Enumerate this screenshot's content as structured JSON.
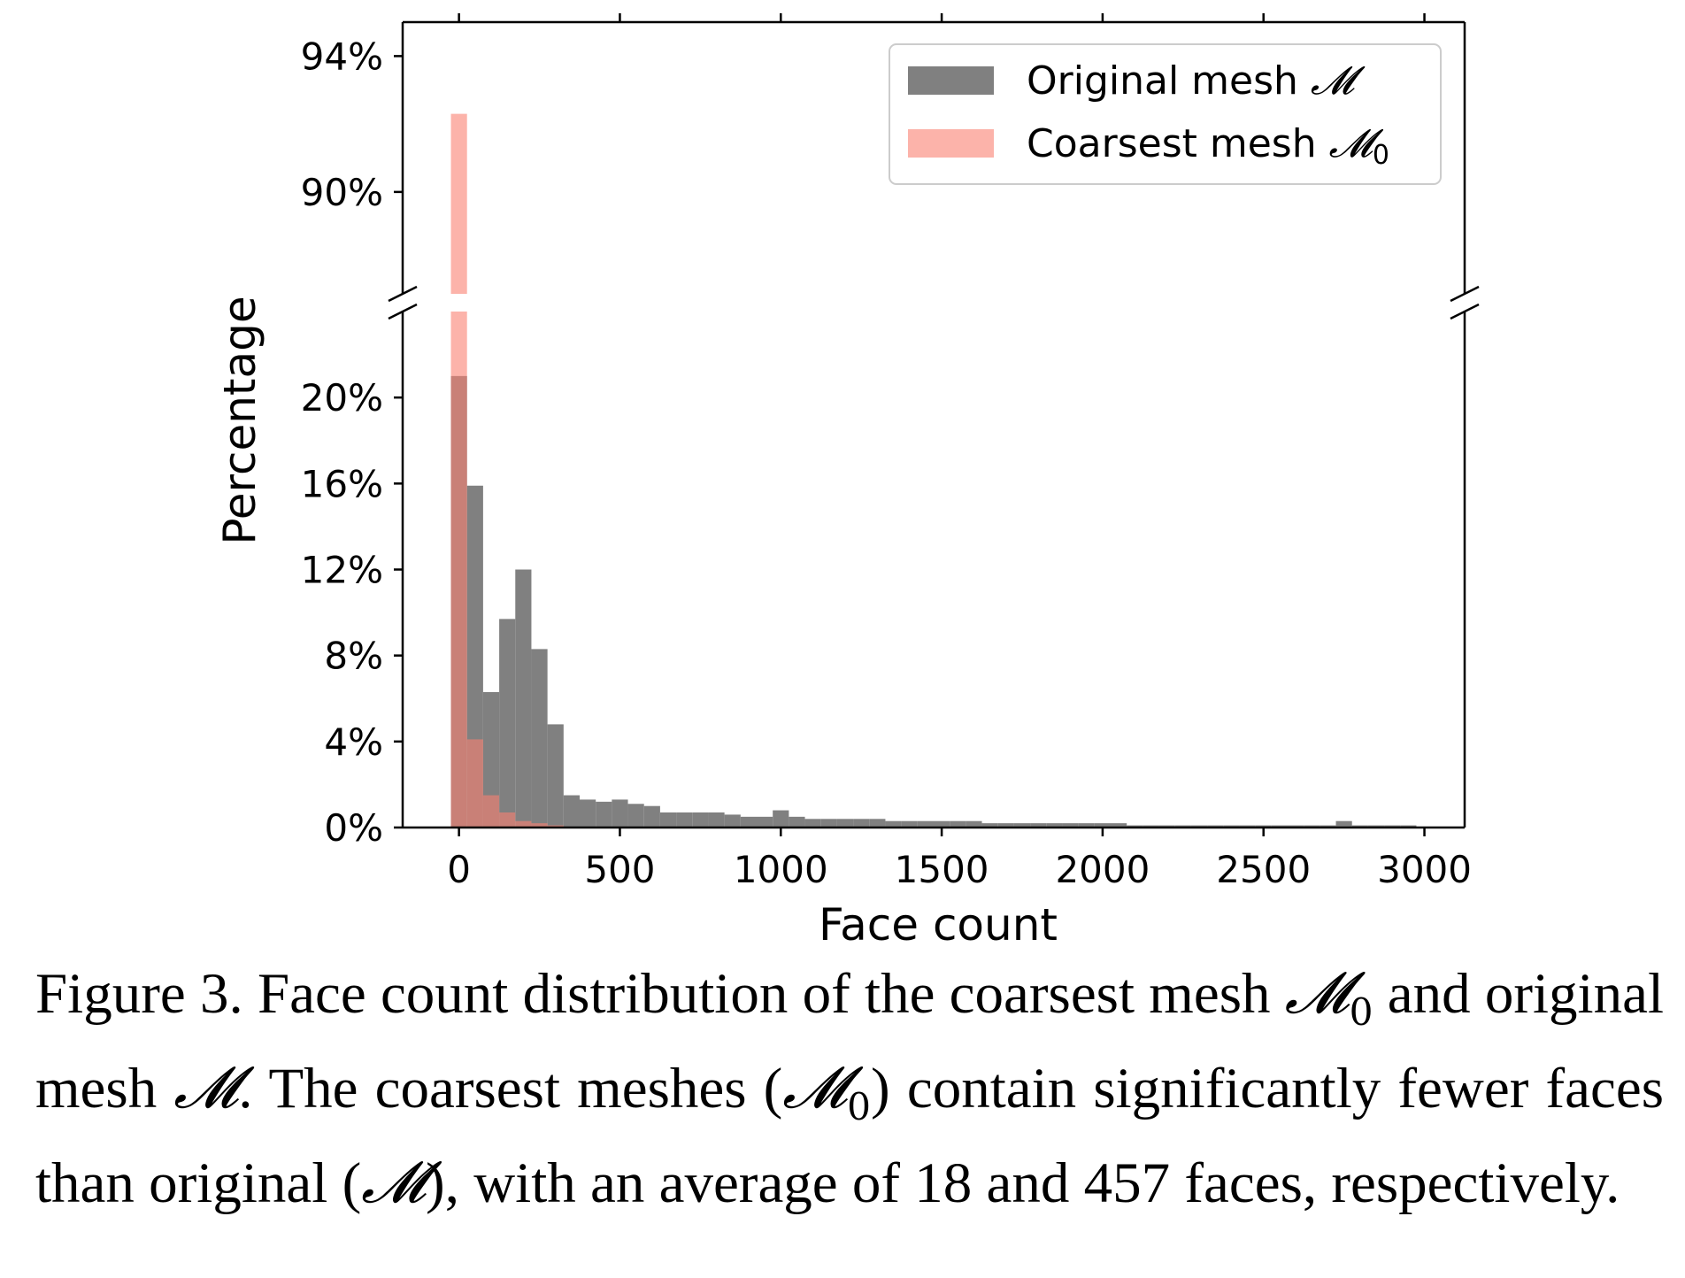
{
  "chart_data": {
    "type": "bar",
    "xlabel": "Face count",
    "ylabel": "Percentage",
    "x_bin_width": 50,
    "xlim": [
      -175,
      3125
    ],
    "xticks": [
      0,
      500,
      1000,
      1500,
      2000,
      2500,
      3000
    ],
    "xtick_labels": [
      "0",
      "500",
      "1000",
      "1500",
      "2000",
      "2500",
      "3000"
    ],
    "ylim_lower": [
      0,
      24
    ],
    "ylim_upper": [
      87,
      95
    ],
    "yticks_lower": [
      0,
      4,
      8,
      12,
      16,
      20
    ],
    "ytick_labels_lower": [
      "0%",
      "4%",
      "8%",
      "12%",
      "16%",
      "20%"
    ],
    "yticks_upper": [
      90,
      94
    ],
    "ytick_labels_upper": [
      "90%",
      "94%"
    ],
    "axis_break": true,
    "legend_position": "upper-right",
    "series": [
      {
        "name": "Original mesh",
        "symbol": "𝓜",
        "subscript": "",
        "color": "#808080",
        "x": [
          0,
          50,
          100,
          150,
          200,
          250,
          300,
          350,
          400,
          450,
          500,
          550,
          600,
          650,
          700,
          750,
          800,
          850,
          900,
          950,
          1000,
          1050,
          1100,
          1150,
          1200,
          1250,
          1300,
          1350,
          1400,
          1450,
          1500,
          1550,
          1600,
          1650,
          1700,
          1750,
          1800,
          1850,
          1900,
          1950,
          2000,
          2050,
          2100,
          2150,
          2200,
          2250,
          2300,
          2350,
          2400,
          2450,
          2500,
          2550,
          2600,
          2650,
          2700,
          2750,
          2800,
          2850,
          2900,
          2950
        ],
        "values": [
          21.0,
          15.9,
          6.3,
          9.7,
          12.0,
          8.3,
          4.8,
          1.5,
          1.3,
          1.2,
          1.3,
          1.1,
          1.0,
          0.7,
          0.7,
          0.7,
          0.7,
          0.6,
          0.5,
          0.5,
          0.8,
          0.5,
          0.4,
          0.4,
          0.4,
          0.4,
          0.4,
          0.3,
          0.3,
          0.3,
          0.3,
          0.3,
          0.3,
          0.2,
          0.2,
          0.2,
          0.2,
          0.2,
          0.2,
          0.2,
          0.2,
          0.2,
          0.1,
          0.1,
          0.1,
          0.1,
          0.1,
          0.1,
          0.1,
          0.1,
          0.1,
          0.1,
          0.1,
          0.1,
          0.1,
          0.3,
          0.1,
          0.1,
          0.1,
          0.1
        ]
      },
      {
        "name": "Coarsest mesh",
        "symbol": "𝓜",
        "subscript": "0",
        "color": "#fa8072",
        "x": [
          0,
          50,
          100,
          150,
          200,
          250,
          300
        ],
        "values": [
          92.3,
          4.1,
          1.5,
          0.7,
          0.3,
          0.2,
          0.1
        ]
      }
    ]
  },
  "caption": {
    "figure_label": "Figure 3.",
    "part1": "Face count distribution of the coarsest mesh",
    "part2": "and original mesh",
    "part3": ". The coarsest meshes (",
    "part4": ") contain significantly fewer faces than original (",
    "part5": "), with an average of 18 and 457 faces, respectively.",
    "mesh_symbol": "𝓜",
    "coarse_subscript": "0"
  }
}
